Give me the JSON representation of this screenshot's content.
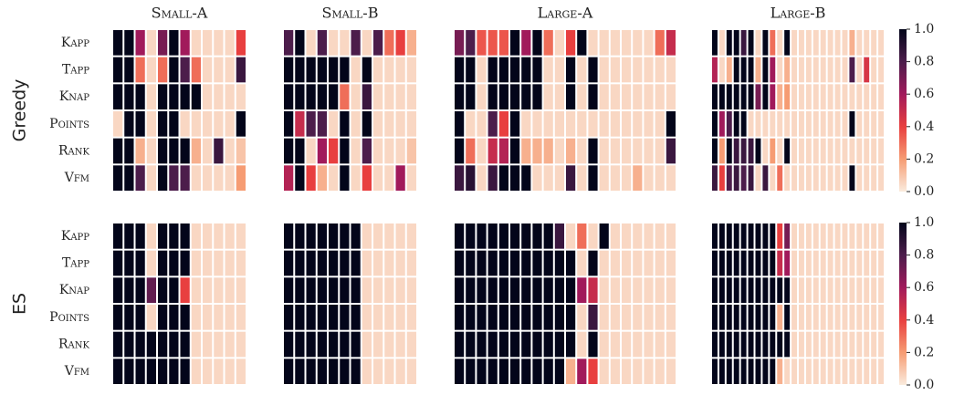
{
  "chart_data": {
    "type": "heatmap",
    "methods": [
      "Greedy",
      "ES"
    ],
    "columns": [
      "Small-A",
      "Small-B",
      "Large-A",
      "Large-B"
    ],
    "rows": [
      "Kapp",
      "Tapp",
      "Knap",
      "Points",
      "Rank",
      "Vfm"
    ],
    "colormap": [
      "#faebdd",
      "#f69c73",
      "#e83f3f",
      "#a11a5b",
      "#4c1d4b",
      "#03051a"
    ],
    "clim": [
      0,
      1
    ],
    "cticks": [
      {
        "value": 0,
        "label": "0.0"
      },
      {
        "value": 0.2,
        "label": "0.2"
      },
      {
        "value": 0.4,
        "label": "0.4"
      },
      {
        "value": 0.6,
        "label": "0.6"
      },
      {
        "value": 0.8,
        "label": "0.8"
      },
      {
        "value": 1,
        "label": "1.0"
      }
    ],
    "values": [
      [
        [
          [
            1,
            1,
            0.6,
            0.05,
            0.7,
            1,
            0.6,
            0.05,
            0.05,
            0.05,
            0.05,
            0.4
          ],
          [
            1,
            1,
            0.3,
            0.05,
            0.3,
            1,
            0.8,
            0.3,
            0.05,
            0.05,
            0.05,
            0.85
          ],
          [
            1,
            1,
            1,
            0.05,
            1,
            1,
            1,
            1,
            0.05,
            0.05,
            0.05,
            0.05
          ],
          [
            0.05,
            1,
            1,
            0.05,
            1,
            1,
            0.05,
            0.05,
            0.05,
            0.05,
            0.05,
            1
          ],
          [
            1,
            1,
            0.15,
            0.05,
            1,
            1,
            1,
            0.15,
            0.05,
            0.85,
            0.05,
            0.1
          ],
          [
            1,
            1,
            0.8,
            0.05,
            1,
            0.8,
            0.8,
            0.05,
            0.05,
            0.05,
            0.05,
            0.2
          ]
        ],
        [
          [
            0.8,
            1,
            0.05,
            0.8,
            0.05,
            0.05,
            0.8,
            0.05,
            0.8,
            0.3,
            0.4,
            0.15
          ],
          [
            1,
            1,
            1,
            1,
            1,
            1,
            0.05,
            1,
            0.05,
            0.05,
            0.05,
            0.05
          ],
          [
            1,
            1,
            1,
            1,
            1,
            0.3,
            0.05,
            0.85,
            0.05,
            0.05,
            0.05,
            0.05
          ],
          [
            1,
            0.5,
            0.8,
            0.8,
            0.05,
            1,
            0.05,
            1,
            0.05,
            0.05,
            0.05,
            0.05
          ],
          [
            1,
            1,
            0.05,
            0.6,
            0.4,
            1,
            0.05,
            0.8,
            0.05,
            0.05,
            0.05,
            0.1
          ],
          [
            0.55,
            1,
            0.4,
            0.15,
            0.05,
            1,
            0.05,
            0.4,
            0.05,
            0.05,
            0.6,
            0.05
          ]
        ],
        [
          [
            0.7,
            0.8,
            0.35,
            0.35,
            0.35,
            1,
            0.6,
            1,
            0.3,
            0.05,
            0.4,
            1,
            0.05,
            0.05,
            0.05,
            0.05,
            0.05,
            0.05,
            0.3,
            0.5
          ],
          [
            1,
            1,
            0.05,
            1,
            1,
            1,
            1,
            1,
            0.05,
            0.05,
            1,
            0.05,
            1,
            0.05,
            0.05,
            0.05,
            0.05,
            0.05,
            0.05,
            0.05
          ],
          [
            1,
            1,
            0.05,
            1,
            1,
            1,
            1,
            1,
            0.05,
            0.05,
            1,
            0.05,
            1,
            0.05,
            0.05,
            0.05,
            0.05,
            0.05,
            0.05,
            0.05
          ],
          [
            1,
            0.05,
            0.05,
            0.8,
            0.4,
            1,
            0.05,
            0.05,
            0.05,
            0.05,
            0.05,
            0.05,
            0.05,
            0.05,
            0.05,
            0.05,
            0.05,
            0.05,
            0.05,
            1
          ],
          [
            1,
            0.3,
            0.05,
            0.5,
            0.55,
            1,
            0.15,
            0.15,
            0.15,
            0.05,
            0.15,
            0.05,
            1,
            0.05,
            0.05,
            0.05,
            0.05,
            0.05,
            0.05,
            0.85
          ],
          [
            0.85,
            0.9,
            0.05,
            0.85,
            1,
            1,
            1,
            0.05,
            0.05,
            0.05,
            0.85,
            0.05,
            1,
            0.05,
            0.05,
            0.05,
            0.15,
            0.05,
            0.05,
            0.05
          ]
        ],
        [
          [
            1,
            0.05,
            1,
            1,
            0.85,
            1,
            0.05,
            1,
            0.3,
            0.05,
            1,
            0.05,
            0.05,
            0.05,
            0.05,
            0.05,
            0.05,
            0.05,
            0.05,
            0.15,
            0.05,
            0.05,
            0.05,
            0.05
          ],
          [
            0.55,
            0.05,
            0.15,
            1,
            1,
            1,
            0.15,
            1,
            0.6,
            0.05,
            0.15,
            0.05,
            0.05,
            0.05,
            0.05,
            0.05,
            0.05,
            0.05,
            0.05,
            0.8,
            0.05,
            0.45,
            0.05,
            0.05
          ],
          [
            1,
            1,
            1,
            1,
            1,
            1,
            0.7,
            1,
            0.6,
            0.15,
            0.2,
            0.05,
            0.05,
            0.05,
            0.05,
            0.05,
            0.05,
            0.05,
            0.05,
            0.05,
            0.05,
            0.05,
            0.05,
            0.05
          ],
          [
            1,
            0.6,
            0.8,
            1,
            1,
            0.05,
            0.05,
            0.05,
            0.05,
            0.05,
            0.05,
            0.05,
            0.05,
            0.05,
            0.05,
            0.05,
            0.05,
            0.05,
            0.05,
            1,
            0.05,
            0.05,
            0.05,
            0.05
          ],
          [
            1,
            0.2,
            1,
            0.85,
            0.85,
            0.85,
            1,
            0.05,
            0.2,
            0.05,
            1,
            0.05,
            0.05,
            0.05,
            0.05,
            0.05,
            0.05,
            0.05,
            0.05,
            0.05,
            0.05,
            0.05,
            0.05,
            0.05
          ],
          [
            0.85,
            0.4,
            0.8,
            0.85,
            0.8,
            0.85,
            0.05,
            0.85,
            0.05,
            0.3,
            0.05,
            0.05,
            0.05,
            0.05,
            0.05,
            0.05,
            0.05,
            0.05,
            0.05,
            1,
            0.05,
            0.05,
            0.05,
            0.05
          ]
        ]
      ],
      [
        [
          [
            1,
            1,
            1,
            0.05,
            1,
            1,
            1,
            0.05,
            0.05,
            0.05,
            0.05,
            0.05
          ],
          [
            1,
            1,
            1,
            0.05,
            1,
            1,
            1,
            0.05,
            0.05,
            0.05,
            0.05,
            0.05
          ],
          [
            1,
            1,
            1,
            0.75,
            1,
            1,
            0.4,
            0.05,
            0.05,
            0.05,
            0.05,
            0.05
          ],
          [
            1,
            1,
            1,
            0.05,
            1,
            1,
            1,
            0.05,
            0.05,
            0.05,
            0.05,
            0.05
          ],
          [
            1,
            1,
            1,
            1,
            1,
            1,
            1,
            0.05,
            0.05,
            0.05,
            0.05,
            0.05
          ],
          [
            1,
            1,
            1,
            1,
            1,
            1,
            1,
            0.05,
            0.05,
            0.05,
            0.05,
            0.05
          ]
        ],
        [
          [
            1,
            1,
            1,
            1,
            1,
            1,
            1,
            0.05,
            0.05,
            0.05,
            0.05,
            0.05
          ],
          [
            1,
            1,
            1,
            1,
            1,
            1,
            1,
            0.05,
            0.05,
            0.05,
            0.05,
            0.05
          ],
          [
            1,
            1,
            1,
            1,
            1,
            1,
            1,
            0.05,
            0.05,
            0.05,
            0.05,
            0.05
          ],
          [
            1,
            1,
            1,
            1,
            1,
            1,
            1,
            0.05,
            0.05,
            0.05,
            0.05,
            0.05
          ],
          [
            1,
            1,
            1,
            1,
            1,
            1,
            1,
            0.05,
            0.05,
            0.05,
            0.05,
            0.05
          ],
          [
            1,
            1,
            1,
            1,
            1,
            1,
            1,
            0.05,
            0.05,
            0.05,
            0.05,
            0.05
          ]
        ],
        [
          [
            1,
            1,
            1,
            1,
            1,
            1,
            1,
            1,
            1,
            0.85,
            0.05,
            0.3,
            0.05,
            1,
            0.05,
            0.05,
            0.05,
            0.05,
            0.05,
            0.05
          ],
          [
            1,
            1,
            1,
            1,
            1,
            1,
            1,
            1,
            1,
            1,
            1,
            0.05,
            1,
            0.05,
            0.05,
            0.05,
            0.05,
            0.05,
            0.05,
            0.05
          ],
          [
            1,
            1,
            1,
            1,
            1,
            1,
            1,
            1,
            1,
            1,
            1,
            0.6,
            0.5,
            0.05,
            0.05,
            0.05,
            0.05,
            0.05,
            0.05,
            0.05
          ],
          [
            1,
            1,
            1,
            1,
            1,
            1,
            1,
            1,
            1,
            1,
            1,
            0.05,
            0.85,
            0.05,
            0.05,
            0.05,
            0.05,
            0.05,
            0.05,
            0.05
          ],
          [
            1,
            1,
            1,
            1,
            1,
            1,
            1,
            1,
            1,
            1,
            1,
            0.05,
            1,
            0.05,
            0.05,
            0.05,
            0.05,
            0.05,
            0.05,
            0.05
          ],
          [
            1,
            1,
            1,
            1,
            1,
            1,
            1,
            1,
            1,
            1,
            0.15,
            0.6,
            0.4,
            0.05,
            0.05,
            0.05,
            0.05,
            0.05,
            0.05,
            0.05
          ]
        ],
        [
          [
            1,
            1,
            1,
            1,
            1,
            1,
            1,
            1,
            1,
            0.4,
            0.7,
            0.05,
            0.05,
            0.05,
            0.05,
            0.05,
            0.05,
            0.05,
            0.05,
            0.05,
            0.05,
            0.05,
            0.05,
            0.05
          ],
          [
            1,
            1,
            1,
            1,
            1,
            1,
            1,
            1,
            1,
            0.5,
            0.6,
            0.05,
            0.05,
            0.05,
            0.05,
            0.05,
            0.05,
            0.05,
            0.05,
            0.05,
            0.05,
            0.05,
            0.05,
            0.05
          ],
          [
            1,
            1,
            1,
            1,
            1,
            1,
            1,
            1,
            1,
            1,
            1,
            0.05,
            0.05,
            0.05,
            0.05,
            0.05,
            0.05,
            0.05,
            0.05,
            0.05,
            0.05,
            0.05,
            0.05,
            0.05
          ],
          [
            1,
            1,
            1,
            1,
            1,
            1,
            1,
            1,
            1,
            0.15,
            1,
            0.05,
            0.05,
            0.05,
            0.05,
            0.05,
            0.05,
            0.05,
            0.05,
            0.05,
            0.05,
            0.05,
            0.05,
            0.05
          ],
          [
            1,
            1,
            1,
            1,
            1,
            1,
            1,
            1,
            1,
            1,
            1,
            0.05,
            0.05,
            0.05,
            0.05,
            0.05,
            0.05,
            0.05,
            0.05,
            0.05,
            0.05,
            0.05,
            0.05,
            0.05
          ],
          [
            1,
            1,
            1,
            1,
            1,
            1,
            1,
            1,
            1,
            0.15,
            0.05,
            0.05,
            0.05,
            0.05,
            0.05,
            0.05,
            0.05,
            0.05,
            0.05,
            0.05,
            0.05,
            0.05,
            0.05,
            0.05
          ]
        ]
      ]
    ]
  }
}
